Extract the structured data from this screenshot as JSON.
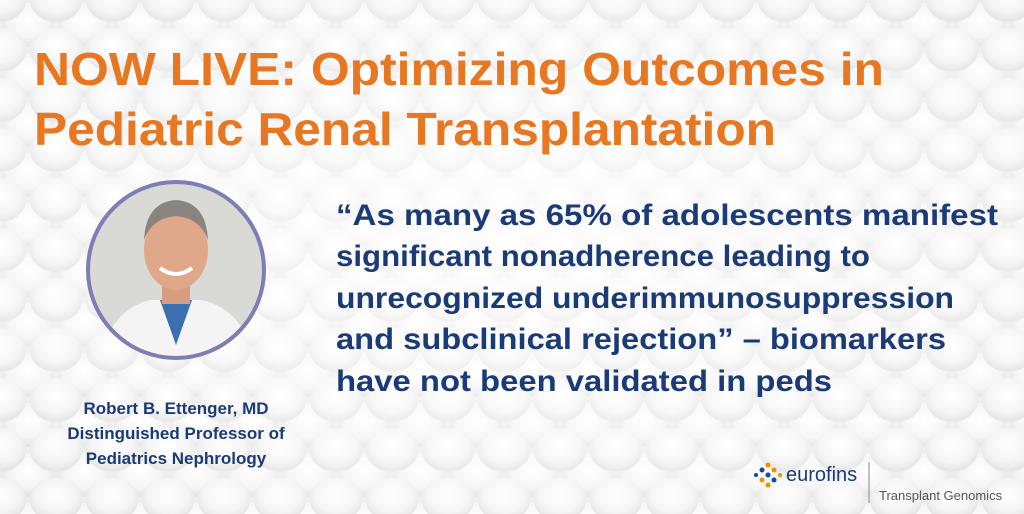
{
  "title": {
    "lines": [
      "NOW LIVE: Optimizing Outcomes in",
      "Pediatric Renal Transplantation"
    ]
  },
  "quote": {
    "lines": [
      "“As many as 65% of adolescents manifest",
      "significant nonadherence leading to",
      "unrecognized underimmunosuppression",
      "and subclinical rejection” – biomarkers",
      "have not been validated in peds"
    ]
  },
  "speaker": {
    "name": "Robert B. Ettenger, MD",
    "role_lines": [
      "Distinguished Professor of",
      "Pediatrics Nephrology"
    ]
  },
  "logo": {
    "brand": "eurofins",
    "division": "Transplant Genomics"
  }
}
